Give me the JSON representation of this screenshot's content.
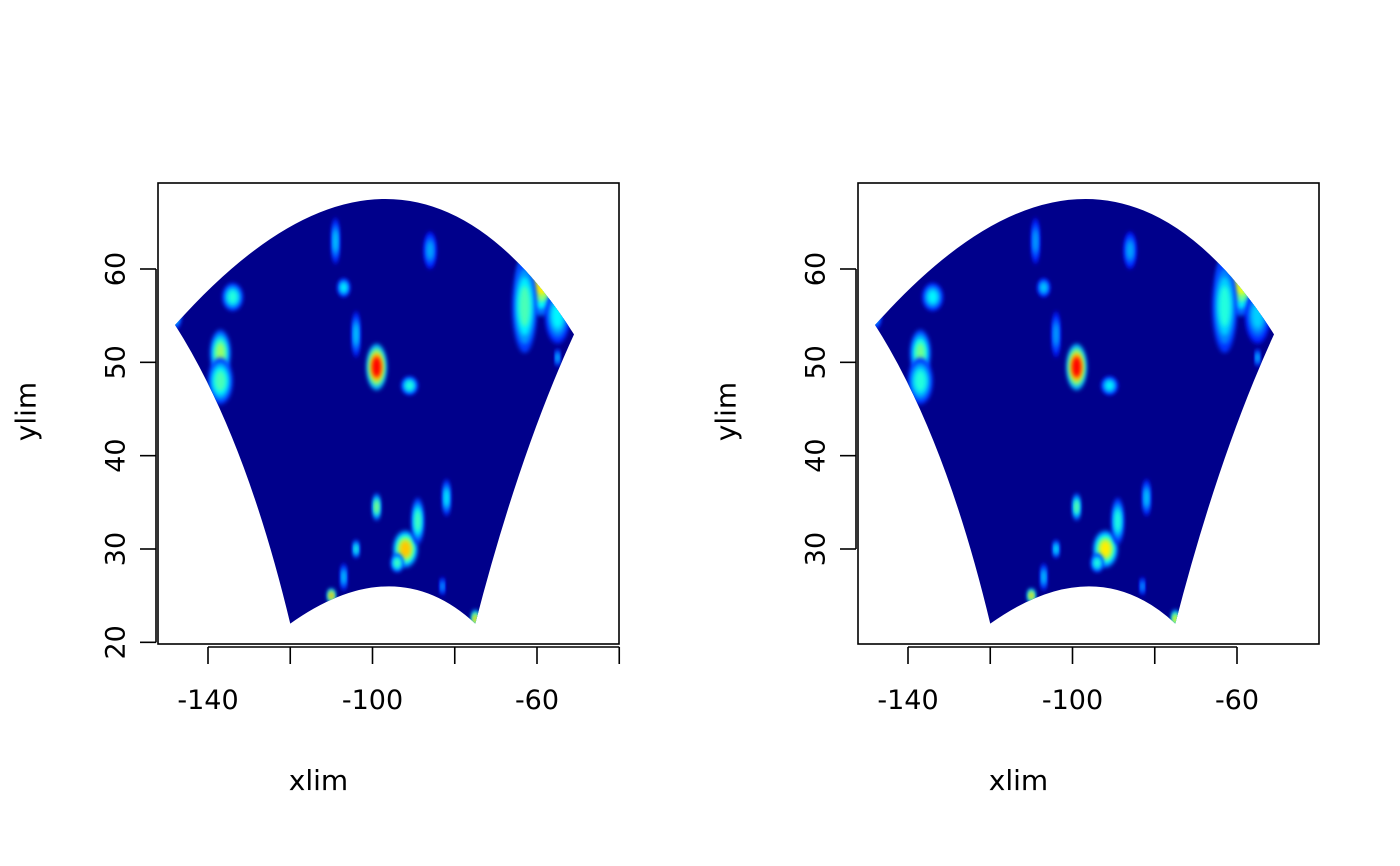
{
  "chart_data": [
    {
      "type": "heatmap",
      "title": "",
      "xlabel": "xlim",
      "ylabel": "ylim",
      "xlim": [
        -150,
        -47
      ],
      "ylim": [
        20,
        69
      ],
      "xticks": [
        -140,
        -120,
        -100,
        -80,
        -60,
        -40
      ],
      "xtick_labels": [
        "-140",
        "",
        "-100",
        "",
        "-60",
        ""
      ],
      "yticks": [
        20,
        30,
        40,
        50,
        60
      ],
      "ytick_labels": [
        "20",
        "30",
        "40",
        "50",
        "60"
      ],
      "grid": false,
      "projection_outline": {
        "top_arc": {
          "from": [
            -148,
            54
          ],
          "peak": [
            -96,
            67.5
          ],
          "to": [
            -51,
            53
          ]
        },
        "bottom_arc": {
          "from": [
            -120,
            22
          ],
          "peak": [
            -96,
            26
          ],
          "to": [
            -75,
            22
          ]
        }
      },
      "background_color": "#00008b",
      "colormap": [
        "#00008b",
        "#0000ff",
        "#00ffff",
        "#ffff00",
        "#ff0000"
      ],
      "features": [
        {
          "lon": -137,
          "lat": 51,
          "rx": 2.5,
          "ry": 2.5,
          "intensity": 0.55
        },
        {
          "lon": -137,
          "lat": 48,
          "rx": 3,
          "ry": 2.5,
          "intensity": 0.45
        },
        {
          "lon": -134,
          "lat": 57,
          "rx": 2.5,
          "ry": 1.5,
          "intensity": 0.4
        },
        {
          "lon": -148,
          "lat": 55,
          "rx": 1.5,
          "ry": 1.5,
          "intensity": 0.35
        },
        {
          "lon": -99,
          "lat": 49.5,
          "rx": 2.5,
          "ry": 2.5,
          "intensity": 1.0
        },
        {
          "lon": -91,
          "lat": 47.5,
          "rx": 2,
          "ry": 1,
          "intensity": 0.4
        },
        {
          "lon": -107,
          "lat": 58,
          "rx": 1.5,
          "ry": 1,
          "intensity": 0.35
        },
        {
          "lon": -109,
          "lat": 63,
          "rx": 1,
          "ry": 2.5,
          "intensity": 0.3
        },
        {
          "lon": -104,
          "lat": 53,
          "rx": 1,
          "ry": 2.5,
          "intensity": 0.3
        },
        {
          "lon": -86,
          "lat": 62,
          "rx": 1.5,
          "ry": 2,
          "intensity": 0.25
        },
        {
          "lon": -59,
          "lat": 59,
          "rx": 6,
          "ry": 4,
          "intensity": 0.7
        },
        {
          "lon": -63,
          "lat": 56,
          "rx": 3,
          "ry": 5,
          "intensity": 0.45
        },
        {
          "lon": -55,
          "lat": 55,
          "rx": 3,
          "ry": 3,
          "intensity": 0.35
        },
        {
          "lon": -99,
          "lat": 34.5,
          "rx": 1,
          "ry": 1.5,
          "intensity": 0.55
        },
        {
          "lon": -92,
          "lat": 30,
          "rx": 3,
          "ry": 2,
          "intensity": 0.75
        },
        {
          "lon": -89,
          "lat": 33,
          "rx": 1.5,
          "ry": 2.5,
          "intensity": 0.45
        },
        {
          "lon": -82,
          "lat": 35.5,
          "rx": 1,
          "ry": 2,
          "intensity": 0.35
        },
        {
          "lon": -94,
          "lat": 28.5,
          "rx": 1.5,
          "ry": 1,
          "intensity": 0.45
        },
        {
          "lon": -104,
          "lat": 30,
          "rx": 0.8,
          "ry": 1,
          "intensity": 0.4
        },
        {
          "lon": -107,
          "lat": 27,
          "rx": 0.8,
          "ry": 1.5,
          "intensity": 0.3
        },
        {
          "lon": -110,
          "lat": 25,
          "rx": 1,
          "ry": 0.8,
          "intensity": 0.8
        },
        {
          "lon": -75,
          "lat": 22.5,
          "rx": 1,
          "ry": 1,
          "intensity": 0.75
        },
        {
          "lon": -83,
          "lat": 26,
          "rx": 0.6,
          "ry": 1,
          "intensity": 0.25
        },
        {
          "lon": -55,
          "lat": 50.5,
          "rx": 0.6,
          "ry": 1,
          "intensity": 0.3
        }
      ]
    },
    {
      "type": "heatmap",
      "title": "",
      "xlabel": "xlim",
      "ylabel": "ylim",
      "xlim": [
        -150,
        -47
      ],
      "ylim": [
        20,
        69
      ],
      "xticks": [
        -140,
        -120,
        -100,
        -80,
        -60
      ],
      "xtick_labels": [
        "-140",
        "",
        "-100",
        "",
        "-60"
      ],
      "yticks": [
        30,
        40,
        50,
        60
      ],
      "ytick_labels": [
        "30",
        "40",
        "50",
        "60"
      ],
      "grid": false,
      "projection_outline": {
        "top_arc": {
          "from": [
            -148,
            54
          ],
          "peak": [
            -96,
            67.5
          ],
          "to": [
            -51,
            53
          ]
        },
        "bottom_arc": {
          "from": [
            -120,
            22
          ],
          "peak": [
            -96,
            26
          ],
          "to": [
            -75,
            22
          ]
        }
      },
      "background_color": "#00008b",
      "colormap": [
        "#00008b",
        "#0000ff",
        "#00ffff",
        "#ffff00",
        "#ff0000"
      ],
      "features": [
        {
          "lon": -137,
          "lat": 51,
          "rx": 2.5,
          "ry": 2.5,
          "intensity": 0.5
        },
        {
          "lon": -137,
          "lat": 48,
          "rx": 3,
          "ry": 2.5,
          "intensity": 0.4
        },
        {
          "lon": -134,
          "lat": 57,
          "rx": 2.5,
          "ry": 1.5,
          "intensity": 0.35
        },
        {
          "lon": -148,
          "lat": 55,
          "rx": 1.5,
          "ry": 1.5,
          "intensity": 0.3
        },
        {
          "lon": -99,
          "lat": 49.5,
          "rx": 2.5,
          "ry": 2.5,
          "intensity": 1.0
        },
        {
          "lon": -91,
          "lat": 47.5,
          "rx": 2,
          "ry": 1,
          "intensity": 0.35
        },
        {
          "lon": -107,
          "lat": 58,
          "rx": 1.5,
          "ry": 1,
          "intensity": 0.3
        },
        {
          "lon": -109,
          "lat": 63,
          "rx": 1,
          "ry": 2.5,
          "intensity": 0.25
        },
        {
          "lon": -104,
          "lat": 53,
          "rx": 1,
          "ry": 2.5,
          "intensity": 0.25
        },
        {
          "lon": -86,
          "lat": 62,
          "rx": 1.5,
          "ry": 2,
          "intensity": 0.25
        },
        {
          "lon": -59,
          "lat": 59,
          "rx": 6,
          "ry": 4,
          "intensity": 0.65
        },
        {
          "lon": -63,
          "lat": 56,
          "rx": 3,
          "ry": 5,
          "intensity": 0.4
        },
        {
          "lon": -55,
          "lat": 55,
          "rx": 3,
          "ry": 3,
          "intensity": 0.3
        },
        {
          "lon": -99,
          "lat": 34.5,
          "rx": 1,
          "ry": 1.5,
          "intensity": 0.5
        },
        {
          "lon": -92,
          "lat": 30,
          "rx": 3,
          "ry": 2,
          "intensity": 0.7
        },
        {
          "lon": -89,
          "lat": 33,
          "rx": 1.5,
          "ry": 2.5,
          "intensity": 0.4
        },
        {
          "lon": -82,
          "lat": 35.5,
          "rx": 1,
          "ry": 2,
          "intensity": 0.3
        },
        {
          "lon": -94,
          "lat": 28.5,
          "rx": 1.5,
          "ry": 1,
          "intensity": 0.4
        },
        {
          "lon": -104,
          "lat": 30,
          "rx": 0.8,
          "ry": 1,
          "intensity": 0.35
        },
        {
          "lon": -107,
          "lat": 27,
          "rx": 0.8,
          "ry": 1.5,
          "intensity": 0.3
        },
        {
          "lon": -110,
          "lat": 25,
          "rx": 1,
          "ry": 0.8,
          "intensity": 0.75
        },
        {
          "lon": -75,
          "lat": 22.5,
          "rx": 1,
          "ry": 1,
          "intensity": 0.7
        },
        {
          "lon": -83,
          "lat": 26,
          "rx": 0.6,
          "ry": 1,
          "intensity": 0.25
        },
        {
          "lon": -55,
          "lat": 50.5,
          "rx": 0.6,
          "ry": 1,
          "intensity": 0.3
        }
      ]
    }
  ]
}
